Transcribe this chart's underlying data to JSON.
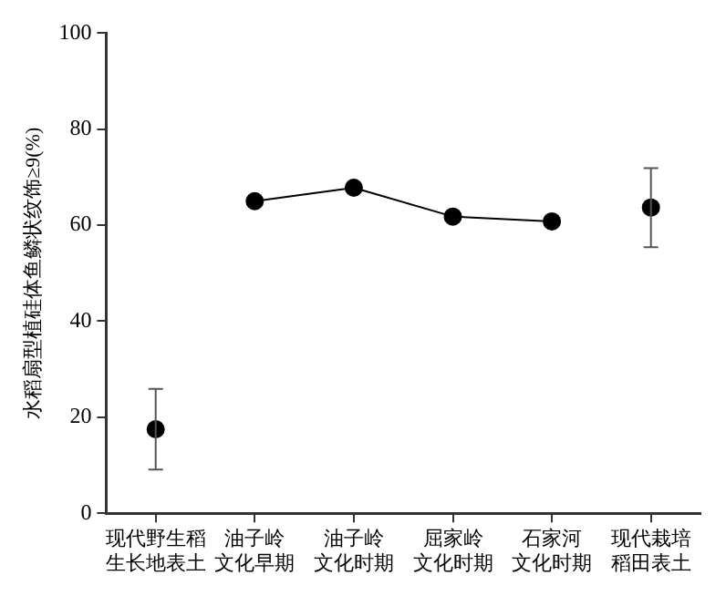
{
  "chart_data": {
    "type": "line",
    "ylabel": "水稻扇型植硅体鱼鳞状纹饰≥9(%)",
    "categories": [
      "现代野生稻生长地表土",
      "油子岭文化早期",
      "油子岭文化时期",
      "屈家岭文化时期",
      "石家河文化时期",
      "现代栽培稻田表土"
    ],
    "series": [
      {
        "type": "scatter",
        "color": "#000000",
        "values": [
          17.5,
          null,
          null,
          null,
          null,
          63.7
        ],
        "errors": [
          [
            9.1,
            25.9
          ],
          null,
          null,
          null,
          null,
          [
            55.4,
            71.9
          ]
        ]
      },
      {
        "type": "line",
        "color": "#000000",
        "values": [
          null,
          65,
          67.8,
          61.8,
          60.8,
          null
        ]
      }
    ],
    "ylim": [
      0,
      100
    ],
    "yticks": [
      0,
      20,
      40,
      60,
      80,
      100
    ],
    "grid": false,
    "legend": false,
    "marker": "circle",
    "line_style": "solid"
  }
}
